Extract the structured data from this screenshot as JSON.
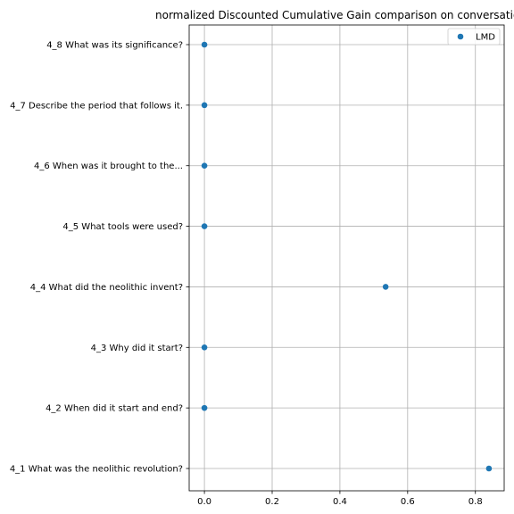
{
  "chart_data": {
    "type": "scatter",
    "title": "normalized Discounted Cumulative Gain comparison on conversatio",
    "xlabel": "",
    "ylabel": "",
    "xlim": [
      -0.045,
      0.885
    ],
    "xticks": [
      0.0,
      0.2,
      0.4,
      0.6,
      0.8
    ],
    "xtick_labels": [
      "0.0",
      "0.2",
      "0.4",
      "0.6",
      "0.8"
    ],
    "categories": [
      "4_1 What was the neolithic revolution?",
      "4_2 When did it start and end?",
      "4_3 Why did it start?",
      "4_4 What did the neolithic invent?",
      "4_5 What tools were used?",
      "4_6 When was it brought to the...",
      "4_7 Describe the period that follows it.",
      "4_8 What was its significance?"
    ],
    "series": [
      {
        "name": "LMD",
        "color": "#1f77b4",
        "values": [
          0.84,
          0.0,
          0.0,
          0.535,
          0.0,
          0.0,
          0.0,
          0.0
        ]
      }
    ],
    "grid": true,
    "legend": "top-right"
  }
}
